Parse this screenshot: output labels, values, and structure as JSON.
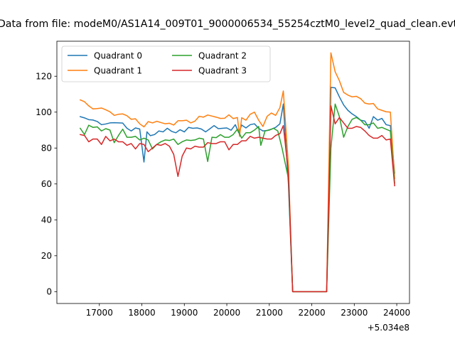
{
  "chart_data": {
    "type": "line",
    "title": "Data from file: modeM0/AS1A14_009T01_9000006534_55254cztM0_level2_quad_clean.evt",
    "xlabel": "",
    "ylabel": "",
    "x_offset_label": "+5.034e8",
    "xlim": [
      16000,
      24300
    ],
    "ylim": [
      -6.6,
      139.5
    ],
    "xticks": [
      17000,
      18000,
      19000,
      20000,
      21000,
      22000,
      23000,
      24000
    ],
    "xtick_labels": [
      "17000",
      "18000",
      "19000",
      "20000",
      "21000",
      "22000",
      "23000",
      "24000"
    ],
    "yticks": [
      0,
      20,
      40,
      60,
      80,
      100,
      120
    ],
    "ytick_labels": [
      "0",
      "20",
      "40",
      "60",
      "80",
      "100",
      "120"
    ],
    "legend": {
      "position": "top-left",
      "columns": 2
    },
    "grid": false,
    "series": [
      {
        "name": "Quadrant 0",
        "color": "#1f77b4",
        "points": [
          [
            16550,
            97.5
          ],
          [
            16650,
            96.8
          ],
          [
            16750,
            95.8
          ],
          [
            16850,
            95.6
          ],
          [
            16950,
            94.8
          ],
          [
            17050,
            93.0
          ],
          [
            17150,
            93.4
          ],
          [
            17250,
            94.0
          ],
          [
            17350,
            94.1
          ],
          [
            17450,
            94.0
          ],
          [
            17550,
            93.9
          ],
          [
            17650,
            91.0
          ],
          [
            17750,
            89.5
          ],
          [
            17850,
            91.2
          ],
          [
            17950,
            90.6
          ],
          [
            18050,
            72.2
          ],
          [
            18120,
            89.0
          ],
          [
            18200,
            86.9
          ],
          [
            18300,
            87.5
          ],
          [
            18400,
            89.5
          ],
          [
            18500,
            89.0
          ],
          [
            18600,
            91.0
          ],
          [
            18700,
            89.3
          ],
          [
            18800,
            88.5
          ],
          [
            18900,
            90.2
          ],
          [
            19000,
            89.0
          ],
          [
            19100,
            91.5
          ],
          [
            19200,
            91.0
          ],
          [
            19300,
            91.2
          ],
          [
            19400,
            90.6
          ],
          [
            19500,
            89.0
          ],
          [
            19600,
            90.7
          ],
          [
            19700,
            92.5
          ],
          [
            19800,
            90.8
          ],
          [
            19900,
            91.0
          ],
          [
            20000,
            91.2
          ],
          [
            20100,
            89.9
          ],
          [
            20200,
            93.0
          ],
          [
            20280,
            88.5
          ],
          [
            20350,
            92.8
          ],
          [
            20450,
            91.2
          ],
          [
            20550,
            93.0
          ],
          [
            20650,
            93.5
          ],
          [
            20750,
            91.0
          ],
          [
            20850,
            89.5
          ],
          [
            20950,
            89.8
          ],
          [
            21050,
            90.5
          ],
          [
            21150,
            91.5
          ],
          [
            21250,
            93.5
          ],
          [
            21330,
            104.5
          ],
          [
            21450,
            60.0
          ],
          [
            21550,
            0.0
          ],
          [
            22350,
            0.0
          ],
          [
            22450,
            113.8
          ],
          [
            22550,
            113.5
          ],
          [
            22650,
            108.5
          ],
          [
            22750,
            104.0
          ],
          [
            22850,
            101.0
          ],
          [
            22950,
            99.0
          ],
          [
            23050,
            97.5
          ],
          [
            23150,
            95.5
          ],
          [
            23250,
            95.0
          ],
          [
            23350,
            91.0
          ],
          [
            23450,
            97.5
          ],
          [
            23550,
            95.5
          ],
          [
            23650,
            96.5
          ],
          [
            23750,
            93.0
          ],
          [
            23850,
            92.5
          ],
          [
            23950,
            66.0
          ]
        ]
      },
      {
        "name": "Quadrant 1",
        "color": "#ff7f0e",
        "points": [
          [
            16550,
            106.8
          ],
          [
            16650,
            105.8
          ],
          [
            16750,
            103.5
          ],
          [
            16850,
            101.8
          ],
          [
            16950,
            102.0
          ],
          [
            17050,
            102.3
          ],
          [
            17150,
            101.3
          ],
          [
            17250,
            100.2
          ],
          [
            17350,
            98.2
          ],
          [
            17450,
            98.8
          ],
          [
            17550,
            99.0
          ],
          [
            17650,
            98.0
          ],
          [
            17750,
            96.0
          ],
          [
            17850,
            96.3
          ],
          [
            17950,
            93.5
          ],
          [
            18050,
            91.8
          ],
          [
            18150,
            94.7
          ],
          [
            18250,
            94.0
          ],
          [
            18350,
            94.9
          ],
          [
            18450,
            94.2
          ],
          [
            18550,
            93.5
          ],
          [
            18650,
            93.8
          ],
          [
            18750,
            92.8
          ],
          [
            18850,
            95.2
          ],
          [
            18950,
            95.2
          ],
          [
            19050,
            95.5
          ],
          [
            19150,
            94.0
          ],
          [
            19250,
            95.0
          ],
          [
            19350,
            97.7
          ],
          [
            19450,
            97.2
          ],
          [
            19550,
            98.4
          ],
          [
            19650,
            97.8
          ],
          [
            19750,
            97.2
          ],
          [
            19850,
            96.5
          ],
          [
            19950,
            96.6
          ],
          [
            20050,
            98.5
          ],
          [
            20150,
            96.4
          ],
          [
            20250,
            97.0
          ],
          [
            20300,
            86.5
          ],
          [
            20350,
            96.9
          ],
          [
            20450,
            95.5
          ],
          [
            20550,
            98.8
          ],
          [
            20650,
            100.0
          ],
          [
            20750,
            95.5
          ],
          [
            20850,
            92.0
          ],
          [
            20950,
            97.7
          ],
          [
            21050,
            99.5
          ],
          [
            21150,
            98.2
          ],
          [
            21250,
            102.5
          ],
          [
            21330,
            111.8
          ],
          [
            21450,
            70.0
          ],
          [
            21550,
            0.0
          ],
          [
            22350,
            0.0
          ],
          [
            22450,
            133.0
          ],
          [
            22550,
            122.5
          ],
          [
            22650,
            117.5
          ],
          [
            22750,
            111.0
          ],
          [
            22850,
            109.5
          ],
          [
            22950,
            108.5
          ],
          [
            23050,
            108.8
          ],
          [
            23150,
            107.5
          ],
          [
            23250,
            105.0
          ],
          [
            23350,
            104.5
          ],
          [
            23450,
            104.8
          ],
          [
            23550,
            101.8
          ],
          [
            23650,
            101.0
          ],
          [
            23750,
            100.2
          ],
          [
            23850,
            100.0
          ],
          [
            23950,
            63.0
          ]
        ]
      },
      {
        "name": "Quadrant 2",
        "color": "#2ca02c",
        "points": [
          [
            16550,
            91.0
          ],
          [
            16650,
            87.5
          ],
          [
            16750,
            92.7
          ],
          [
            16850,
            91.5
          ],
          [
            16950,
            91.8
          ],
          [
            17050,
            89.5
          ],
          [
            17150,
            90.8
          ],
          [
            17250,
            90.0
          ],
          [
            17350,
            83.0
          ],
          [
            17450,
            87.0
          ],
          [
            17550,
            90.5
          ],
          [
            17650,
            86.0
          ],
          [
            17750,
            86.0
          ],
          [
            17850,
            86.5
          ],
          [
            17950,
            84.5
          ],
          [
            18050,
            85.5
          ],
          [
            18150,
            84.5
          ],
          [
            18250,
            79.5
          ],
          [
            18350,
            82.0
          ],
          [
            18450,
            83.5
          ],
          [
            18550,
            84.5
          ],
          [
            18650,
            84.2
          ],
          [
            18750,
            85.0
          ],
          [
            18850,
            82.0
          ],
          [
            18950,
            83.5
          ],
          [
            19050,
            84.5
          ],
          [
            19150,
            84.2
          ],
          [
            19250,
            84.5
          ],
          [
            19350,
            85.5
          ],
          [
            19450,
            85.0
          ],
          [
            19550,
            72.5
          ],
          [
            19650,
            86.0
          ],
          [
            19750,
            85.8
          ],
          [
            19850,
            87.5
          ],
          [
            19950,
            86.0
          ],
          [
            20050,
            86.0
          ],
          [
            20150,
            87.5
          ],
          [
            20250,
            90.5
          ],
          [
            20350,
            85.5
          ],
          [
            20450,
            88.5
          ],
          [
            20550,
            88.5
          ],
          [
            20650,
            90.0
          ],
          [
            20750,
            92.0
          ],
          [
            20800,
            81.5
          ],
          [
            20900,
            89.5
          ],
          [
            21000,
            90.0
          ],
          [
            21100,
            91.0
          ],
          [
            21200,
            89.5
          ],
          [
            21300,
            80.0
          ],
          [
            21450,
            63.0
          ],
          [
            21550,
            0.0
          ],
          [
            22350,
            0.0
          ],
          [
            22450,
            80.0
          ],
          [
            22550,
            104.5
          ],
          [
            22650,
            97.5
          ],
          [
            22750,
            86.0
          ],
          [
            22850,
            92.0
          ],
          [
            22950,
            96.0
          ],
          [
            23050,
            97.0
          ],
          [
            23150,
            95.5
          ],
          [
            23250,
            93.0
          ],
          [
            23350,
            93.0
          ],
          [
            23450,
            94.0
          ],
          [
            23550,
            91.0
          ],
          [
            23650,
            91.5
          ],
          [
            23750,
            90.5
          ],
          [
            23850,
            89.5
          ],
          [
            23950,
            60.5
          ]
        ]
      },
      {
        "name": "Quadrant 3",
        "color": "#d62728",
        "points": [
          [
            16550,
            87.5
          ],
          [
            16650,
            87.0
          ],
          [
            16750,
            83.5
          ],
          [
            16850,
            85.0
          ],
          [
            16950,
            85.0
          ],
          [
            17050,
            82.0
          ],
          [
            17150,
            86.5
          ],
          [
            17250,
            84.0
          ],
          [
            17350,
            85.0
          ],
          [
            17450,
            83.5
          ],
          [
            17550,
            83.5
          ],
          [
            17650,
            81.5
          ],
          [
            17750,
            82.5
          ],
          [
            17850,
            79.5
          ],
          [
            17950,
            82.5
          ],
          [
            18050,
            82.0
          ],
          [
            18150,
            78.0
          ],
          [
            18250,
            80.0
          ],
          [
            18350,
            82.0
          ],
          [
            18450,
            81.5
          ],
          [
            18550,
            82.5
          ],
          [
            18650,
            81.0
          ],
          [
            18750,
            76.5
          ],
          [
            18850,
            64.2
          ],
          [
            18950,
            75.5
          ],
          [
            19050,
            80.0
          ],
          [
            19150,
            79.5
          ],
          [
            19250,
            81.0
          ],
          [
            19350,
            80.5
          ],
          [
            19450,
            80.5
          ],
          [
            19550,
            83.0
          ],
          [
            19650,
            82.5
          ],
          [
            19750,
            82.5
          ],
          [
            19850,
            83.5
          ],
          [
            19950,
            83.5
          ],
          [
            20050,
            79.0
          ],
          [
            20150,
            82.0
          ],
          [
            20250,
            82.0
          ],
          [
            20350,
            84.0
          ],
          [
            20450,
            84.0
          ],
          [
            20550,
            86.5
          ],
          [
            20650,
            85.5
          ],
          [
            20750,
            86.0
          ],
          [
            20850,
            85.5
          ],
          [
            20950,
            85.0
          ],
          [
            21050,
            85.0
          ],
          [
            21150,
            87.0
          ],
          [
            21250,
            88.0
          ],
          [
            21330,
            92.5
          ],
          [
            21450,
            66.0
          ],
          [
            21550,
            0.0
          ],
          [
            22350,
            0.0
          ],
          [
            22450,
            103.5
          ],
          [
            22550,
            93.5
          ],
          [
            22650,
            97.0
          ],
          [
            22750,
            94.0
          ],
          [
            22850,
            91.0
          ],
          [
            22950,
            91.0
          ],
          [
            23050,
            92.0
          ],
          [
            23150,
            91.5
          ],
          [
            23250,
            89.5
          ],
          [
            23350,
            87.0
          ],
          [
            23450,
            85.5
          ],
          [
            23550,
            85.5
          ],
          [
            23650,
            87.0
          ],
          [
            23750,
            84.5
          ],
          [
            23850,
            85.0
          ],
          [
            23950,
            59.0
          ]
        ]
      }
    ]
  }
}
